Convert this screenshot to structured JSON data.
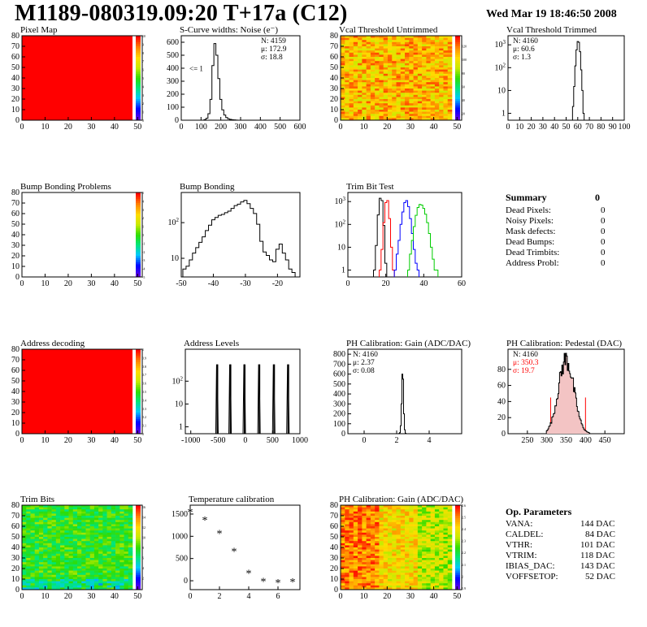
{
  "header": {
    "title": "M1189-080319.09:20 T+17a (C12)",
    "timestamp": "Wed Mar 19 18:46:50 2008"
  },
  "summary": {
    "title": "Summary",
    "total": "0",
    "rows": [
      {
        "label": "Dead Pixels:",
        "value": "0"
      },
      {
        "label": "Noisy Pixels:",
        "value": "0"
      },
      {
        "label": "Mask defects:",
        "value": "0"
      },
      {
        "label": "Dead Bumps:",
        "value": "0"
      },
      {
        "label": "Dead Trimbits:",
        "value": "0"
      },
      {
        "label": "Address Probl:",
        "value": "0"
      }
    ]
  },
  "op_params": {
    "title": "Op. Parameters",
    "rows": [
      {
        "label": "VANA:",
        "value": "144 DAC"
      },
      {
        "label": "CALDEL:",
        "value": "84 DAC"
      },
      {
        "label": "VTHR:",
        "value": "101 DAC"
      },
      {
        "label": "VTRIM:",
        "value": "118 DAC"
      },
      {
        "label": "IBIAS_DAC:",
        "value": "143 DAC"
      },
      {
        "label": "VOFFSETOP:",
        "value": "52 DAC"
      }
    ]
  },
  "colors": {
    "red": "#ff0000",
    "blue": "#0000ff",
    "green": "#00cc00",
    "pedestal_stats": "#ff0000"
  },
  "chart_data": [
    {
      "id": "pixel-map",
      "type": "heatmap",
      "title": "Pixel Map",
      "xlim": [
        0,
        52
      ],
      "ylim": [
        0,
        80
      ],
      "xticks": [
        0,
        10,
        20,
        30,
        40,
        50
      ],
      "yticks": [
        0,
        10,
        20,
        30,
        40,
        50,
        60,
        70,
        80
      ],
      "fill": "uniform-max",
      "z_ticks": [
        "10",
        "9",
        "8",
        "7",
        "6",
        "5",
        "4",
        "3",
        "2",
        "1",
        "0"
      ],
      "z_tick_pos": [
        0,
        0.1,
        0.2,
        0.3,
        0.4,
        0.5,
        0.6,
        0.7,
        0.8,
        0.9,
        1
      ]
    },
    {
      "id": "scurve-noise",
      "type": "histogram",
      "title": "S-Curve widths: Noise (e⁻)",
      "xlim": [
        0,
        600
      ],
      "ylim": [
        0,
        650
      ],
      "xticks": [
        0,
        100,
        200,
        300,
        400,
        500,
        600
      ],
      "yticks": [
        0,
        100,
        200,
        300,
        400,
        500,
        600
      ],
      "annotation": "<= 1",
      "stats": [
        "N: 4159",
        "μ: 172.9",
        "σ: 18.8"
      ],
      "series": [
        {
          "color": "#000000",
          "x": [
            120,
            130,
            140,
            150,
            160,
            170,
            180,
            190,
            200,
            210,
            220,
            230,
            240,
            250,
            260,
            270,
            280,
            290
          ],
          "values": [
            5,
            15,
            50,
            160,
            420,
            590,
            500,
            320,
            160,
            80,
            40,
            20,
            10,
            6,
            3,
            2,
            1,
            0
          ]
        }
      ]
    },
    {
      "id": "vcal-untrimmed",
      "type": "heatmap",
      "title": "Vcal Threshold Untrimmed",
      "xlim": [
        0,
        52
      ],
      "ylim": [
        0,
        80
      ],
      "xticks": [
        0,
        10,
        20,
        30,
        40,
        50
      ],
      "yticks": [
        0,
        10,
        20,
        30,
        40,
        50,
        60,
        70,
        80
      ],
      "fill": "noise-orange",
      "z_ticks": [
        "120",
        "100",
        "80",
        "60",
        "40",
        "20"
      ],
      "z_tick_pos": [
        0.12,
        0.28,
        0.44,
        0.6,
        0.76,
        0.92
      ]
    },
    {
      "id": "vcal-trimmed",
      "type": "histogram",
      "title": "Vcal Threshold Trimmed",
      "xlim": [
        0,
        100
      ],
      "ylog": true,
      "ylim": [
        0.5,
        2500
      ],
      "xticks": [
        0,
        10,
        20,
        30,
        40,
        50,
        60,
        70,
        80,
        90,
        100
      ],
      "yticks": [
        1,
        10,
        100,
        1000
      ],
      "stats": [
        "N: 4160",
        "μ: 60.6",
        "σ:  1.3"
      ],
      "series": [
        {
          "color": "#000000",
          "x": [
            56,
            57,
            58,
            59,
            60,
            61,
            62,
            63,
            64,
            65
          ],
          "values": [
            2,
            15,
            120,
            600,
            1400,
            1300,
            500,
            80,
            10,
            1
          ]
        }
      ]
    },
    {
      "id": "bump-problems",
      "type": "heatmap",
      "title": "Bump Bonding Problems",
      "xlim": [
        0,
        52
      ],
      "ylim": [
        0,
        80
      ],
      "xticks": [
        0,
        10,
        20,
        30,
        40,
        50
      ],
      "yticks": [
        0,
        10,
        20,
        30,
        40,
        50,
        60,
        70,
        80
      ],
      "fill": "empty",
      "z_ticks": [
        "5",
        "4",
        "3",
        "2",
        "1",
        "0",
        "-1",
        "-2",
        "-3",
        "-4",
        "-5"
      ],
      "z_tick_pos": [
        0,
        0.1,
        0.2,
        0.3,
        0.4,
        0.5,
        0.6,
        0.7,
        0.8,
        0.9,
        1
      ]
    },
    {
      "id": "bump-bonding",
      "type": "histogram",
      "title": "Bump Bonding",
      "xlim": [
        -50,
        -13
      ],
      "ylog": true,
      "ylim": [
        3,
        700
      ],
      "xticks": [
        -50,
        -40,
        -30,
        -20
      ],
      "yticks": [
        10,
        100
      ],
      "series": [
        {
          "color": "#000000",
          "x": [
            -49,
            -48,
            -47,
            -46,
            -45,
            -44,
            -43,
            -42,
            -41,
            -40,
            -39,
            -38,
            -37,
            -36,
            -35,
            -34,
            -33,
            -32,
            -31,
            -30,
            -29,
            -28,
            -27,
            -26,
            -25,
            -24,
            -23,
            -22,
            -21,
            -20,
            -19,
            -18,
            -17,
            -16,
            -15
          ],
          "values": [
            5,
            6,
            9,
            14,
            20,
            28,
            40,
            60,
            85,
            120,
            140,
            160,
            170,
            190,
            210,
            250,
            300,
            330,
            380,
            420,
            340,
            250,
            180,
            90,
            30,
            15,
            12,
            9,
            8,
            18,
            25,
            14,
            9,
            5,
            4
          ]
        }
      ]
    },
    {
      "id": "trim-bit-test",
      "type": "histogram",
      "title": "Trim Bit Test",
      "xlim": [
        0,
        60
      ],
      "ylog": true,
      "ylim": [
        0.5,
        2500
      ],
      "xticks": [
        0,
        20,
        40,
        60
      ],
      "yticks": [
        1,
        10,
        100,
        1000
      ],
      "series": [
        {
          "color": "#000000",
          "x": [
            14,
            15,
            16,
            17,
            18,
            19,
            20
          ],
          "values": [
            1,
            12,
            260,
            1400,
            1100,
            90,
            2
          ]
        },
        {
          "color": "#ff0000",
          "x": [
            17,
            18,
            19,
            20,
            21,
            22,
            23,
            24
          ],
          "values": [
            1,
            8,
            120,
            900,
            1100,
            180,
            10,
            1
          ]
        },
        {
          "color": "#0000ff",
          "x": [
            25,
            26,
            27,
            28,
            29,
            30,
            31,
            32,
            33,
            34,
            35,
            36,
            37
          ],
          "values": [
            1,
            5,
            20,
            100,
            350,
            900,
            1100,
            600,
            180,
            40,
            8,
            2,
            1
          ]
        },
        {
          "color": "#00cc00",
          "x": [
            32,
            33,
            34,
            35,
            36,
            37,
            38,
            39,
            40,
            41,
            42,
            43,
            44,
            45,
            46,
            47
          ],
          "values": [
            1,
            5,
            20,
            80,
            250,
            550,
            750,
            700,
            500,
            280,
            120,
            40,
            10,
            3,
            1,
            1
          ]
        }
      ]
    },
    {
      "id": "address-decoding",
      "type": "heatmap",
      "title": "Address decoding",
      "xlim": [
        0,
        52
      ],
      "ylim": [
        0,
        80
      ],
      "xticks": [
        0,
        10,
        20,
        30,
        40,
        50
      ],
      "yticks": [
        0,
        10,
        20,
        30,
        40,
        50,
        60,
        70,
        80
      ],
      "fill": "uniform-max",
      "z_ticks": [
        "1",
        "0.9",
        "0.8",
        "0.7",
        "0.6",
        "0.5",
        "0.4",
        "0.3",
        "0.2",
        "0.1",
        "0"
      ],
      "z_tick_pos": [
        0,
        0.1,
        0.2,
        0.3,
        0.4,
        0.5,
        0.6,
        0.7,
        0.8,
        0.9,
        1
      ]
    },
    {
      "id": "address-levels",
      "type": "histogram",
      "title": "Address Levels",
      "xlim": [
        -1100,
        1000
      ],
      "ylog": true,
      "ylim": [
        0.5,
        2500
      ],
      "xticks": [
        -1000,
        -500,
        0,
        500,
        1000
      ],
      "xticklabels": [
        "-1000",
        "-500",
        "0",
        "500",
        "1000"
      ],
      "yticks": [
        1,
        10,
        100
      ],
      "series": [
        {
          "color": "#000000",
          "peaks": [
            -520,
            -280,
            -20,
            250,
            520,
            780
          ],
          "height": 520,
          "width": 45
        }
      ]
    },
    {
      "id": "ph-gain",
      "type": "histogram",
      "title": "PH Calibration: Gain (ADC/DAC)",
      "xlim": [
        -1,
        6
      ],
      "ylim": [
        0,
        850
      ],
      "xticks": [
        0,
        2,
        4
      ],
      "yticks": [
        0,
        100,
        200,
        300,
        400,
        500,
        600,
        700,
        800
      ],
      "stats": [
        "N: 4160",
        "μ: 2.37",
        "σ: 0.08"
      ],
      "series": [
        {
          "color": "#000000",
          "x": [
            2.15,
            2.2,
            2.25,
            2.3,
            2.35,
            2.4,
            2.45,
            2.5,
            2.55
          ],
          "values": [
            2,
            10,
            80,
            300,
            600,
            550,
            200,
            40,
            5
          ]
        }
      ]
    },
    {
      "id": "ph-pedestal",
      "type": "histogram",
      "title": "PH Calibration: Pedestal (DAC)",
      "xlim": [
        200,
        500
      ],
      "ylim": [
        0,
        105
      ],
      "xticks": [
        250,
        300,
        350,
        400,
        450
      ],
      "yticks": [
        0,
        20,
        40,
        60,
        80
      ],
      "stats": [
        "N: 4160",
        "μ: 350.3",
        "σ: 19.7"
      ],
      "stats_colors": [
        "#000000",
        "#ff0000",
        "#ff0000"
      ],
      "cut_lines": [
        310,
        400
      ],
      "series": [
        {
          "color": "#000000",
          "shape": "gaussian",
          "mean": 350,
          "sigma": 20,
          "peak": 92
        }
      ]
    },
    {
      "id": "trim-bits",
      "type": "heatmap",
      "title": "Trim Bits",
      "xlim": [
        0,
        52
      ],
      "ylim": [
        0,
        80
      ],
      "xticks": [
        0,
        10,
        20,
        30,
        40,
        50
      ],
      "yticks": [
        0,
        10,
        20,
        30,
        40,
        50,
        60,
        70,
        80
      ],
      "fill": "noise-green",
      "z_ticks": [
        "16",
        "14",
        "12",
        "10",
        "8",
        "6",
        "4",
        "2"
      ],
      "z_tick_pos": [
        0.02,
        0.14,
        0.26,
        0.38,
        0.5,
        0.62,
        0.74,
        0.86
      ]
    },
    {
      "id": "temperature-calibration",
      "type": "scatter",
      "title": "Temperature calibration",
      "xlim": [
        0,
        7.5
      ],
      "ylim": [
        -200,
        1700
      ],
      "xticks": [
        0,
        2,
        4,
        6
      ],
      "yticks": [
        0,
        500,
        1000,
        1500
      ],
      "series": [
        {
          "color": "#000000",
          "x": [
            0,
            1,
            2,
            3,
            4,
            5,
            6,
            7
          ],
          "values": [
            1540,
            1350,
            1050,
            650,
            160,
            -30,
            -50,
            -40
          ]
        }
      ]
    },
    {
      "id": "ph-gain-map",
      "type": "heatmap",
      "title": "PH Calibration: Gain (ADC/DAC)",
      "xlim": [
        0,
        52
      ],
      "ylim": [
        0,
        80
      ],
      "xticks": [
        0,
        10,
        20,
        30,
        40,
        50
      ],
      "yticks": [
        0,
        10,
        20,
        30,
        40,
        50,
        60,
        70,
        80
      ],
      "fill": "noise-gain",
      "z_ticks": [
        "2.6",
        "2.5",
        "2.4",
        "2.3",
        "2.2",
        "2.1",
        "2",
        "1.9"
      ],
      "z_tick_pos": [
        0,
        0.14,
        0.28,
        0.42,
        0.56,
        0.7,
        0.84,
        0.98
      ]
    }
  ]
}
